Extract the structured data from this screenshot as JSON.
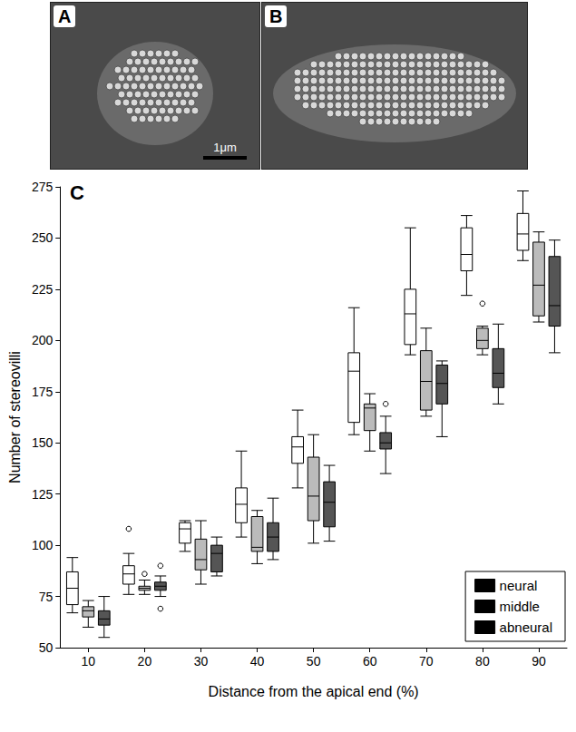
{
  "images": [
    {
      "label": "A",
      "scale_bar": "1μm"
    },
    {
      "label": "B"
    }
  ],
  "chart_data": {
    "type": "boxplot",
    "title": "C",
    "x_label": "Distance from the apical end (%)",
    "y_label": "Number of stereovilli",
    "categories": [
      "10",
      "20",
      "30",
      "40",
      "50",
      "60",
      "70",
      "80",
      "90"
    ],
    "ylim": [
      50,
      275
    ],
    "yticks": [
      50,
      75,
      100,
      125,
      150,
      175,
      200,
      225,
      250,
      275
    ],
    "grid": false,
    "legend": "bottom-right",
    "series": [
      {
        "name": "neural",
        "color": "#ffffff",
        "values": [
          [
            67,
            71,
            79,
            87,
            94
          ],
          [
            76,
            81,
            86,
            90,
            96
          ],
          [
            97,
            101,
            108,
            111,
            112
          ],
          [
            104,
            111,
            120,
            128,
            146
          ],
          [
            128,
            140,
            148,
            153,
            166
          ],
          [
            154,
            160,
            185,
            194,
            216
          ],
          [
            193,
            198,
            213,
            225,
            255
          ],
          [
            222,
            234,
            242,
            255,
            261
          ],
          [
            239,
            244,
            252,
            262,
            273
          ]
        ],
        "outliers": [
          [
            "20",
            108
          ]
        ]
      },
      {
        "name": "middle",
        "color": "#bbbbbb",
        "values": [
          [
            60,
            65,
            68,
            70,
            73
          ],
          [
            76,
            78,
            79,
            80,
            83
          ],
          [
            81,
            88,
            93,
            103,
            112
          ],
          [
            91,
            97,
            99,
            114,
            117
          ],
          [
            101,
            112,
            124,
            143,
            154
          ],
          [
            146,
            156,
            167,
            169,
            174
          ],
          [
            163,
            166,
            180,
            195,
            206
          ],
          [
            193,
            196,
            200,
            206,
            207
          ],
          [
            209,
            212,
            227,
            248,
            253
          ]
        ],
        "outliers": [
          [
            "20",
            86
          ],
          [
            "80",
            218
          ]
        ]
      },
      {
        "name": "abneural",
        "color": "#555555",
        "values": [
          [
            55,
            61,
            64,
            68,
            75
          ],
          [
            75,
            78,
            80,
            82,
            85
          ],
          [
            85,
            87,
            96,
            100,
            104
          ],
          [
            93,
            97,
            104,
            111,
            123
          ],
          [
            102,
            109,
            121,
            131,
            139
          ],
          [
            135,
            147,
            150,
            155,
            163
          ],
          [
            153,
            169,
            179,
            188,
            190
          ],
          [
            169,
            177,
            184,
            196,
            208
          ],
          [
            194,
            207,
            217,
            241,
            249
          ]
        ],
        "outliers": [
          [
            "20",
            90
          ],
          [
            "20",
            69
          ],
          [
            "60",
            169
          ]
        ]
      }
    ]
  }
}
